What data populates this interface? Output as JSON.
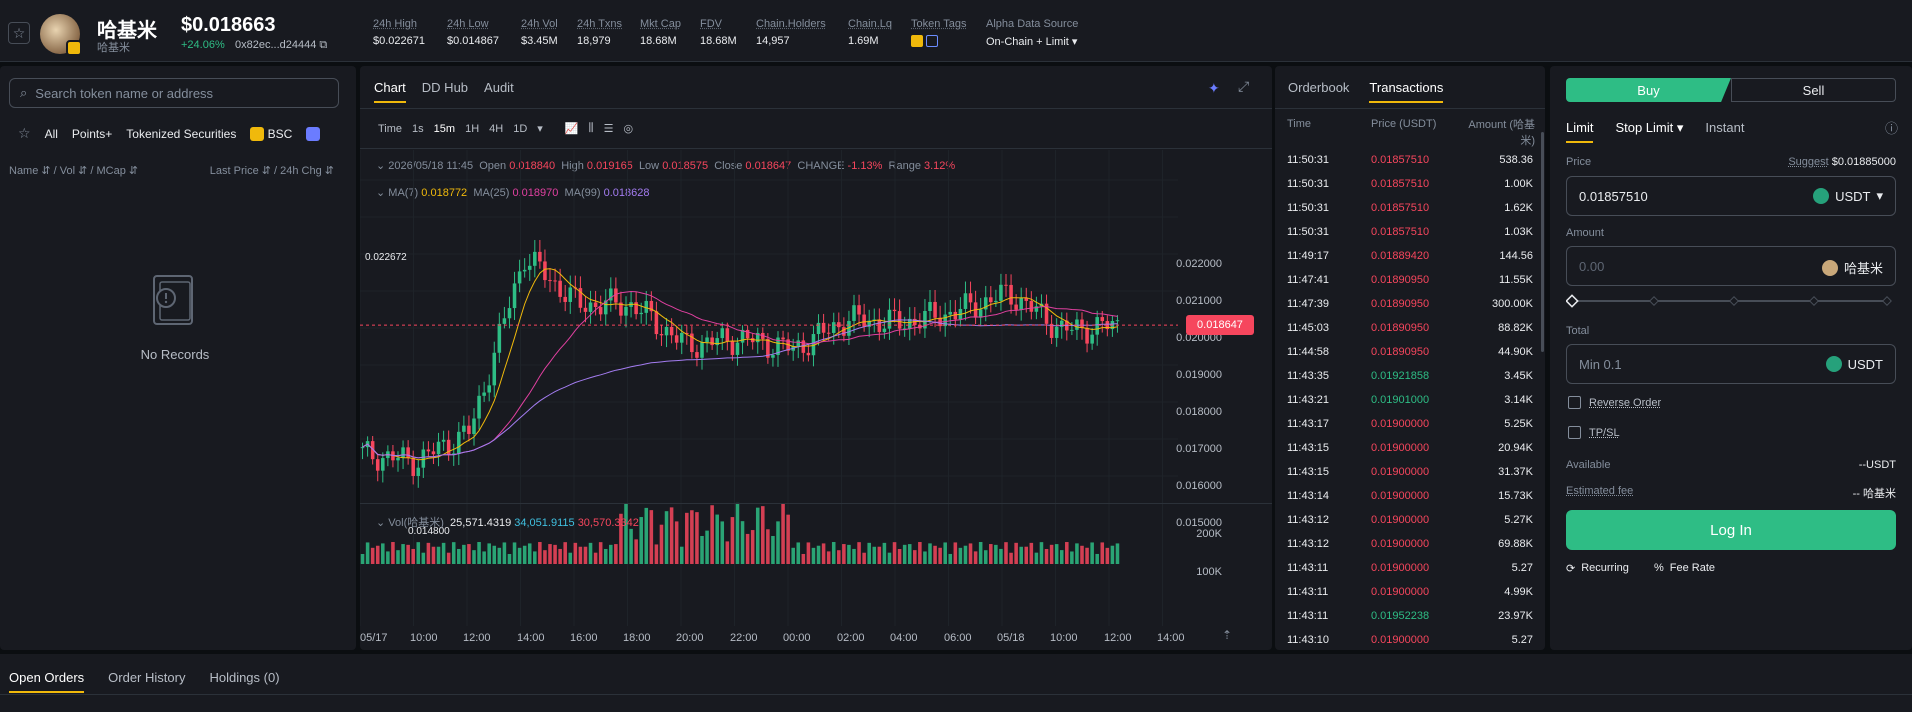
{
  "token": {
    "name": "哈基米",
    "sub": "哈基米",
    "price": "$0.018663",
    "change": "+24.06%",
    "address": "0x82ec...d24444"
  },
  "stats": [
    {
      "label": "24h High",
      "value": "$0.022671"
    },
    {
      "label": "24h Low",
      "value": "$0.014867"
    },
    {
      "label": "24h Vol",
      "value": "$3.45M"
    },
    {
      "label": "24h Txns",
      "value": "18,979"
    },
    {
      "label": "Mkt Cap",
      "value": "18.68M"
    },
    {
      "label": "FDV",
      "value": "18.68M"
    },
    {
      "label": "Chain.Holders",
      "value": "14,957"
    },
    {
      "label": "Chain.Lq",
      "value": "1.69M"
    },
    {
      "label": "Token Tags",
      "value": ""
    },
    {
      "label": "Alpha Data Source",
      "value": "On-Chain + Limit"
    }
  ],
  "left": {
    "search_placeholder": "Search token name or address",
    "filters": [
      "All",
      "Points+",
      "Tokenized Securities",
      "BSC"
    ],
    "col_left": "Name ⇵ / Vol ⇵ / MCap ⇵",
    "col_right": "Last Price ⇵ / 24h Chg ⇵",
    "no_records": "No Records"
  },
  "chart": {
    "tabs": [
      "Chart",
      "DD Hub",
      "Audit"
    ],
    "intervals": [
      "Time",
      "1s",
      "15m",
      "1H",
      "4H",
      "1D"
    ],
    "ohlc": {
      "date": "2026/05/18 11:45",
      "open_label": "Open",
      "open": "0.018840",
      "high_label": "High",
      "high": "0.019165",
      "low_label": "Low",
      "low": "0.018575",
      "close_label": "Close",
      "close": "0.018647",
      "change_label": "CHANGE",
      "change": "-1.13%",
      "range_label": "Range",
      "range": "3.12%"
    },
    "ma": {
      "ma7_label": "MA(7)",
      "ma7": "0.018772",
      "ma25_label": "MA(25)",
      "ma25": "0.018970",
      "ma99_label": "MA(99)",
      "ma99": "0.018628"
    },
    "vol": {
      "label": "Vol(哈基米)",
      "v1": "25,571.4319",
      "v2": "34,051.9115",
      "v3": "30,570.3342"
    },
    "high_mark": "0.022672",
    "low_mark": "0.014800",
    "last_price": "0.018647",
    "y_labels": [
      "0.022000",
      "0.021000",
      "0.020000",
      "0.019000",
      "0.018000",
      "0.017000",
      "0.016000",
      "0.015000"
    ],
    "vol_labels": [
      "200K",
      "100K"
    ],
    "x_labels": [
      "05/17",
      "10:00",
      "12:00",
      "14:00",
      "16:00",
      "18:00",
      "20:00",
      "22:00",
      "00:00",
      "02:00",
      "04:00",
      "06:00",
      "05/18",
      "10:00",
      "12:00",
      "14:00"
    ]
  },
  "chart_data": {
    "type": "candlestick",
    "interval": "15m",
    "yrange": [
      0.0145,
      0.0228
    ],
    "x": [
      "05/17 08:00",
      "05/17 10:00",
      "05/17 12:00",
      "05/17 14:00",
      "05/17 16:00",
      "05/17 18:00",
      "05/17 20:00",
      "05/17 22:00",
      "05/18 00:00",
      "05/18 02:00",
      "05/18 04:00",
      "05/18 06:00",
      "05/18 08:00",
      "05/18 10:00",
      "05/18 12:00"
    ],
    "close": [
      0.0152,
      0.015,
      0.0158,
      0.0205,
      0.0192,
      0.0192,
      0.0181,
      0.0183,
      0.018,
      0.0188,
      0.0187,
      0.019,
      0.0195,
      0.0185,
      0.018647
    ],
    "series": [
      {
        "name": "MA(7)",
        "value": 0.018772
      },
      {
        "name": "MA(25)",
        "value": 0.01897
      },
      {
        "name": "MA(99)",
        "value": 0.018628
      }
    ]
  },
  "tx": {
    "tabs": [
      "Orderbook",
      "Transactions"
    ],
    "headers": [
      "Time",
      "Price (USDT)",
      "Amount (哈基米)"
    ],
    "rows": [
      [
        "11:50:31",
        "0.01857510",
        "538.36",
        "r"
      ],
      [
        "11:50:31",
        "0.01857510",
        "1.00K",
        "r"
      ],
      [
        "11:50:31",
        "0.01857510",
        "1.62K",
        "r"
      ],
      [
        "11:50:31",
        "0.01857510",
        "1.03K",
        "r"
      ],
      [
        "11:49:17",
        "0.01889420",
        "144.56",
        "r"
      ],
      [
        "11:47:41",
        "0.01890950",
        "11.55K",
        "r"
      ],
      [
        "11:47:39",
        "0.01890950",
        "300.00K",
        "r"
      ],
      [
        "11:45:03",
        "0.01890950",
        "88.82K",
        "r"
      ],
      [
        "11:44:58",
        "0.01890950",
        "44.90K",
        "r"
      ],
      [
        "11:43:35",
        "0.01921858",
        "3.45K",
        "g"
      ],
      [
        "11:43:21",
        "0.01901000",
        "3.14K",
        "g"
      ],
      [
        "11:43:17",
        "0.01900000",
        "5.25K",
        "r"
      ],
      [
        "11:43:15",
        "0.01900000",
        "20.94K",
        "r"
      ],
      [
        "11:43:15",
        "0.01900000",
        "31.37K",
        "r"
      ],
      [
        "11:43:14",
        "0.01900000",
        "15.73K",
        "r"
      ],
      [
        "11:43:12",
        "0.01900000",
        "5.27K",
        "r"
      ],
      [
        "11:43:12",
        "0.01900000",
        "69.88K",
        "r"
      ],
      [
        "11:43:11",
        "0.01900000",
        "5.27",
        "r"
      ],
      [
        "11:43:11",
        "0.01900000",
        "4.99K",
        "r"
      ],
      [
        "11:43:11",
        "0.01952238",
        "23.97K",
        "g"
      ],
      [
        "11:43:10",
        "0.01900000",
        "5.27",
        "r"
      ]
    ]
  },
  "trade": {
    "buy": "Buy",
    "sell": "Sell",
    "tabs": [
      "Limit",
      "Stop Limit",
      "Instant"
    ],
    "price_label": "Price",
    "suggest_label": "Suggest",
    "suggest": "$0.01885000",
    "price": "0.01857510",
    "usdt": "USDT",
    "amount_label": "Amount",
    "amount_placeholder": "0.00",
    "token": "哈基米",
    "total_label": "Total",
    "total_placeholder": "Min 0.1",
    "reverse": "Reverse Order",
    "tpsl": "TP/SL",
    "available_label": "Available",
    "available": "--USDT",
    "fee_label": "Estimated fee",
    "fee": "-- 哈基米",
    "login": "Log In",
    "recurring": "Recurring",
    "fee_rate": "Fee Rate"
  },
  "bottom": {
    "tabs": [
      "Open Orders",
      "Order History",
      "Holdings (0)"
    ]
  },
  "colors": {
    "green": "#2ebd85",
    "red": "#f6465d",
    "gold": "#f0b90b"
  }
}
